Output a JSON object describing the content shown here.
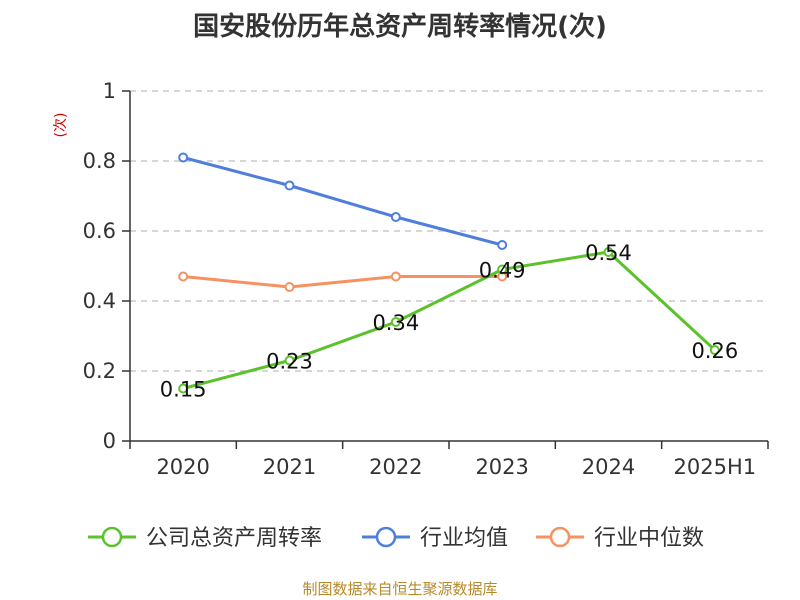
{
  "chart_data": {
    "type": "line",
    "title": "国安股份历年总资产周转率情况(次)",
    "ylabel": "(次)",
    "categories": [
      "2020",
      "2021",
      "2022",
      "2023",
      "2024",
      "2025H1"
    ],
    "ylim": [
      0,
      1
    ],
    "yticks": [
      0,
      0.2,
      0.4,
      0.6,
      0.8,
      1
    ],
    "ytick_labels": [
      "0",
      "0.2",
      "0.4",
      "0.6",
      "0.8",
      "1"
    ],
    "grid": true,
    "legend_position": "bottom",
    "series": [
      {
        "name": "公司总资产周转率",
        "color": "#5cc22c",
        "values": [
          0.15,
          0.23,
          0.34,
          0.49,
          0.54,
          0.26
        ],
        "data_labels": [
          "0.15",
          "0.23",
          "0.34",
          "0.49",
          "0.54",
          "0.26"
        ]
      },
      {
        "name": "行业均值",
        "color": "#4f7fdb",
        "values": [
          0.81,
          0.73,
          0.64,
          0.56,
          null,
          null
        ]
      },
      {
        "name": "行业中位数",
        "color": "#f79160",
        "values": [
          0.47,
          0.44,
          0.47,
          0.47,
          null,
          null
        ]
      }
    ]
  },
  "footer": "制图数据来自恒生聚源数据库"
}
